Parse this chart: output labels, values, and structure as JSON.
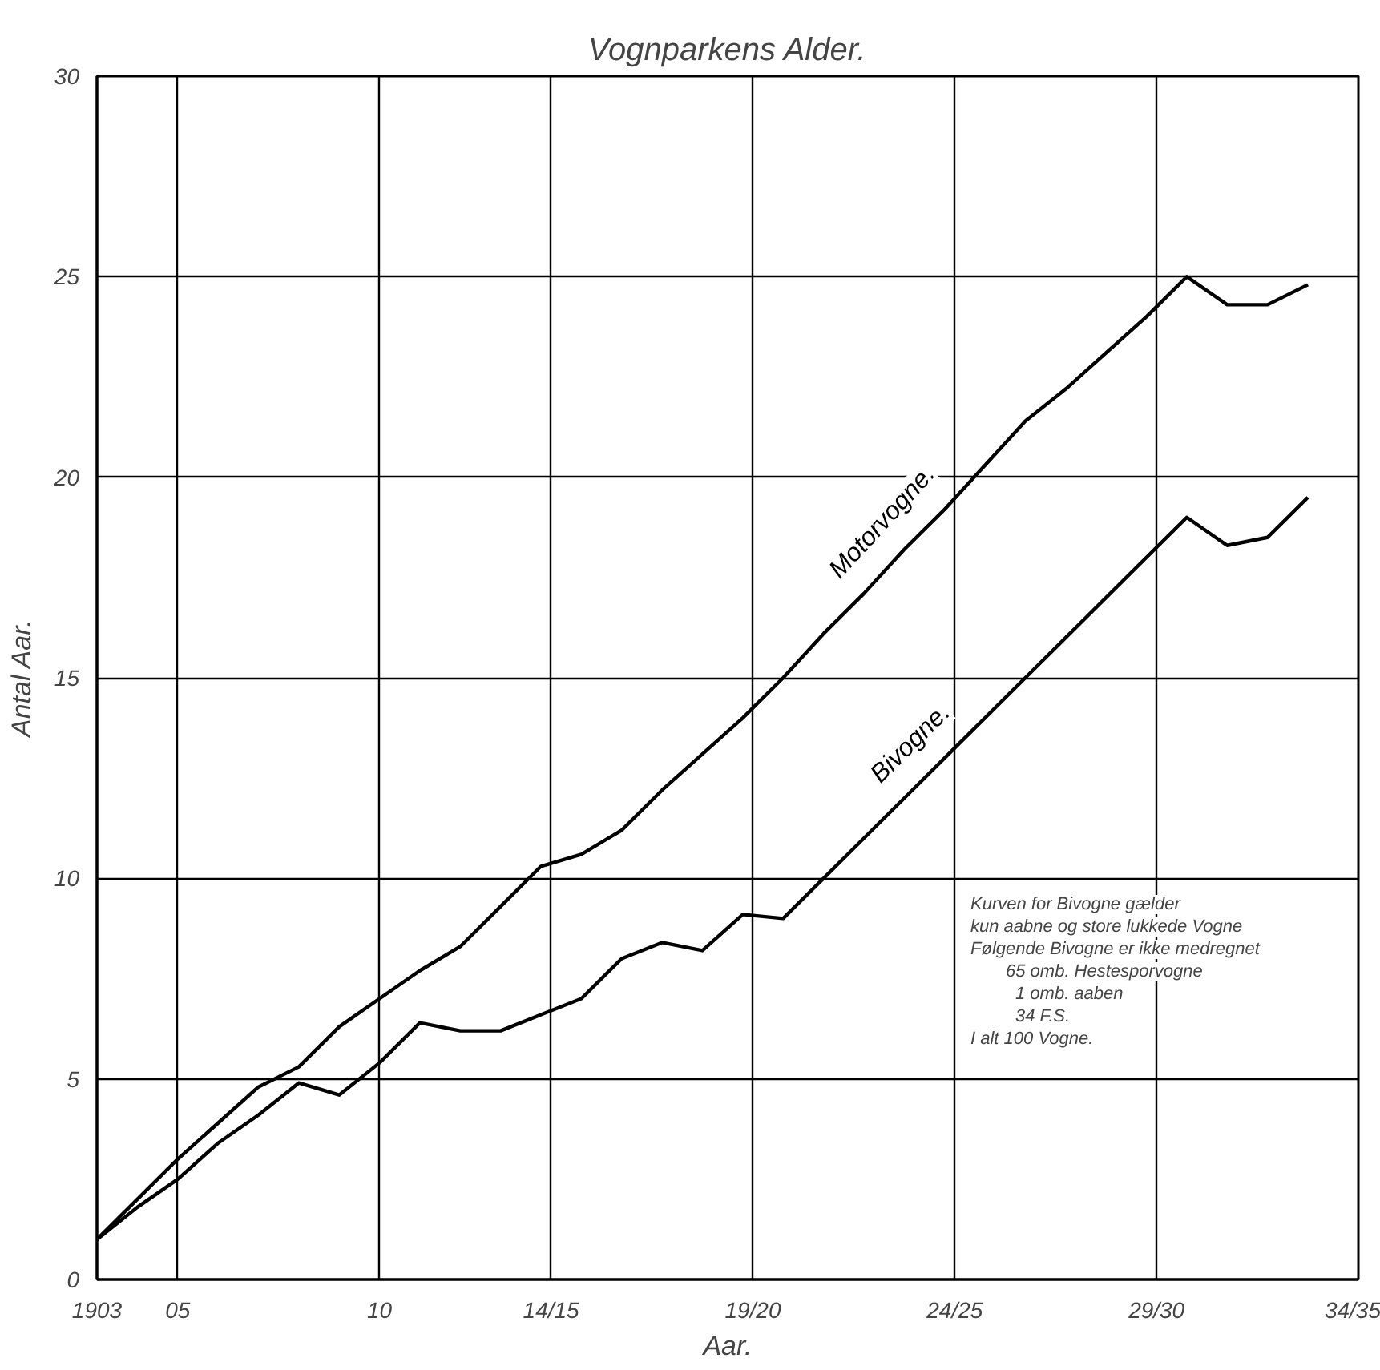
{
  "chart_data": {
    "type": "line",
    "title": "Vognparkens Alder.",
    "xlabel": "Aar.",
    "ylabel": "Antal Aar.",
    "x": [
      1903,
      1904,
      1905,
      1906,
      1907,
      1908,
      1909,
      1910,
      1911,
      1912,
      1913,
      1914,
      1915,
      1916,
      1917,
      1918,
      1919,
      1920,
      1921,
      1922,
      1923,
      1924,
      1925,
      1926,
      1927,
      1928,
      1929,
      1930,
      1931,
      1932,
      1933
    ],
    "series": [
      {
        "name": "Motorvogne.",
        "color": "#000000",
        "values": [
          1.0,
          2.0,
          3.0,
          3.9,
          4.8,
          5.3,
          6.3,
          7.0,
          7.7,
          8.3,
          9.3,
          10.3,
          10.6,
          11.2,
          12.2,
          13.1,
          14.0,
          15.0,
          16.1,
          17.1,
          18.2,
          19.2,
          20.3,
          21.4,
          22.2,
          23.1,
          24.0,
          25.0,
          24.3,
          24.3,
          24.8
        ]
      },
      {
        "name": "Bivogne.",
        "color": "#000000",
        "values": [
          1.0,
          1.8,
          2.5,
          3.4,
          4.1,
          4.9,
          4.6,
          5.4,
          6.4,
          6.2,
          6.2,
          6.6,
          7.0,
          8.0,
          8.4,
          8.2,
          9.1,
          9.0,
          10.0,
          11.0,
          12.0,
          13.0,
          14.0,
          15.0,
          16.0,
          17.0,
          18.0,
          19.0,
          18.3,
          18.5,
          19.5
        ]
      }
    ],
    "xlim": [
      1903,
      1934.25
    ],
    "ylim": [
      0,
      30
    ],
    "xticks": [
      {
        "value": 1903,
        "label": "1903"
      },
      {
        "value": 1905,
        "label": "05"
      },
      {
        "value": 1910,
        "label": "10"
      },
      {
        "value": 1914.25,
        "label": "14/15"
      },
      {
        "value": 1919.25,
        "label": "19/20"
      },
      {
        "value": 1924.25,
        "label": "24/25"
      },
      {
        "value": 1929.25,
        "label": "29/30"
      },
      {
        "value": 1934.25,
        "label": "34/35"
      }
    ],
    "yticks": [
      0,
      5,
      10,
      15,
      20,
      25,
      30
    ],
    "grid": true,
    "marker": "none",
    "line_style": "solid",
    "annotations": [
      "Kurven for Bivogne gælder",
      "kun aabne og store lukkede Vogne",
      "Følgende Bivogne er ikke medregnet",
      "65 omb. Hestesporvogne",
      "1 omb. aaben",
      "34 F.S.",
      "I alt 100 Vogne."
    ]
  }
}
